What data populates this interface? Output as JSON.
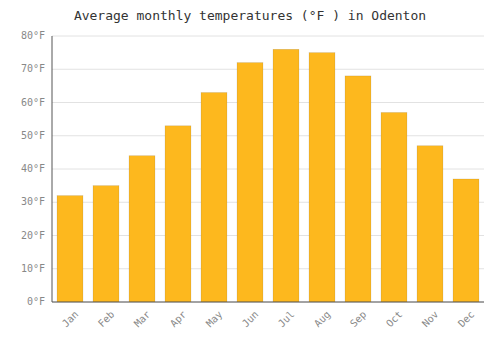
{
  "chart_data": {
    "type": "bar",
    "title": "Average monthly temperatures (°F ) in Odenton",
    "categories": [
      "Jan",
      "Feb",
      "Mar",
      "Apr",
      "May",
      "Jun",
      "Jul",
      "Aug",
      "Sep",
      "Oct",
      "Nov",
      "Dec"
    ],
    "values": [
      32,
      35,
      44,
      53,
      63,
      72,
      76,
      75,
      68,
      57,
      47,
      37
    ],
    "color": "#FDB81E",
    "ylim": [
      0,
      80
    ],
    "yticks": [
      {
        "value": 0,
        "label": "0°F"
      },
      {
        "value": 10,
        "label": "10°F"
      },
      {
        "value": 20,
        "label": "20°F"
      },
      {
        "value": 30,
        "label": "30°F"
      },
      {
        "value": 40,
        "label": "40°F"
      },
      {
        "value": 50,
        "label": "50°F"
      },
      {
        "value": 60,
        "label": "60°F"
      },
      {
        "value": 70,
        "label": "70°F"
      },
      {
        "value": 80,
        "label": "80°F"
      }
    ],
    "grid": true
  }
}
